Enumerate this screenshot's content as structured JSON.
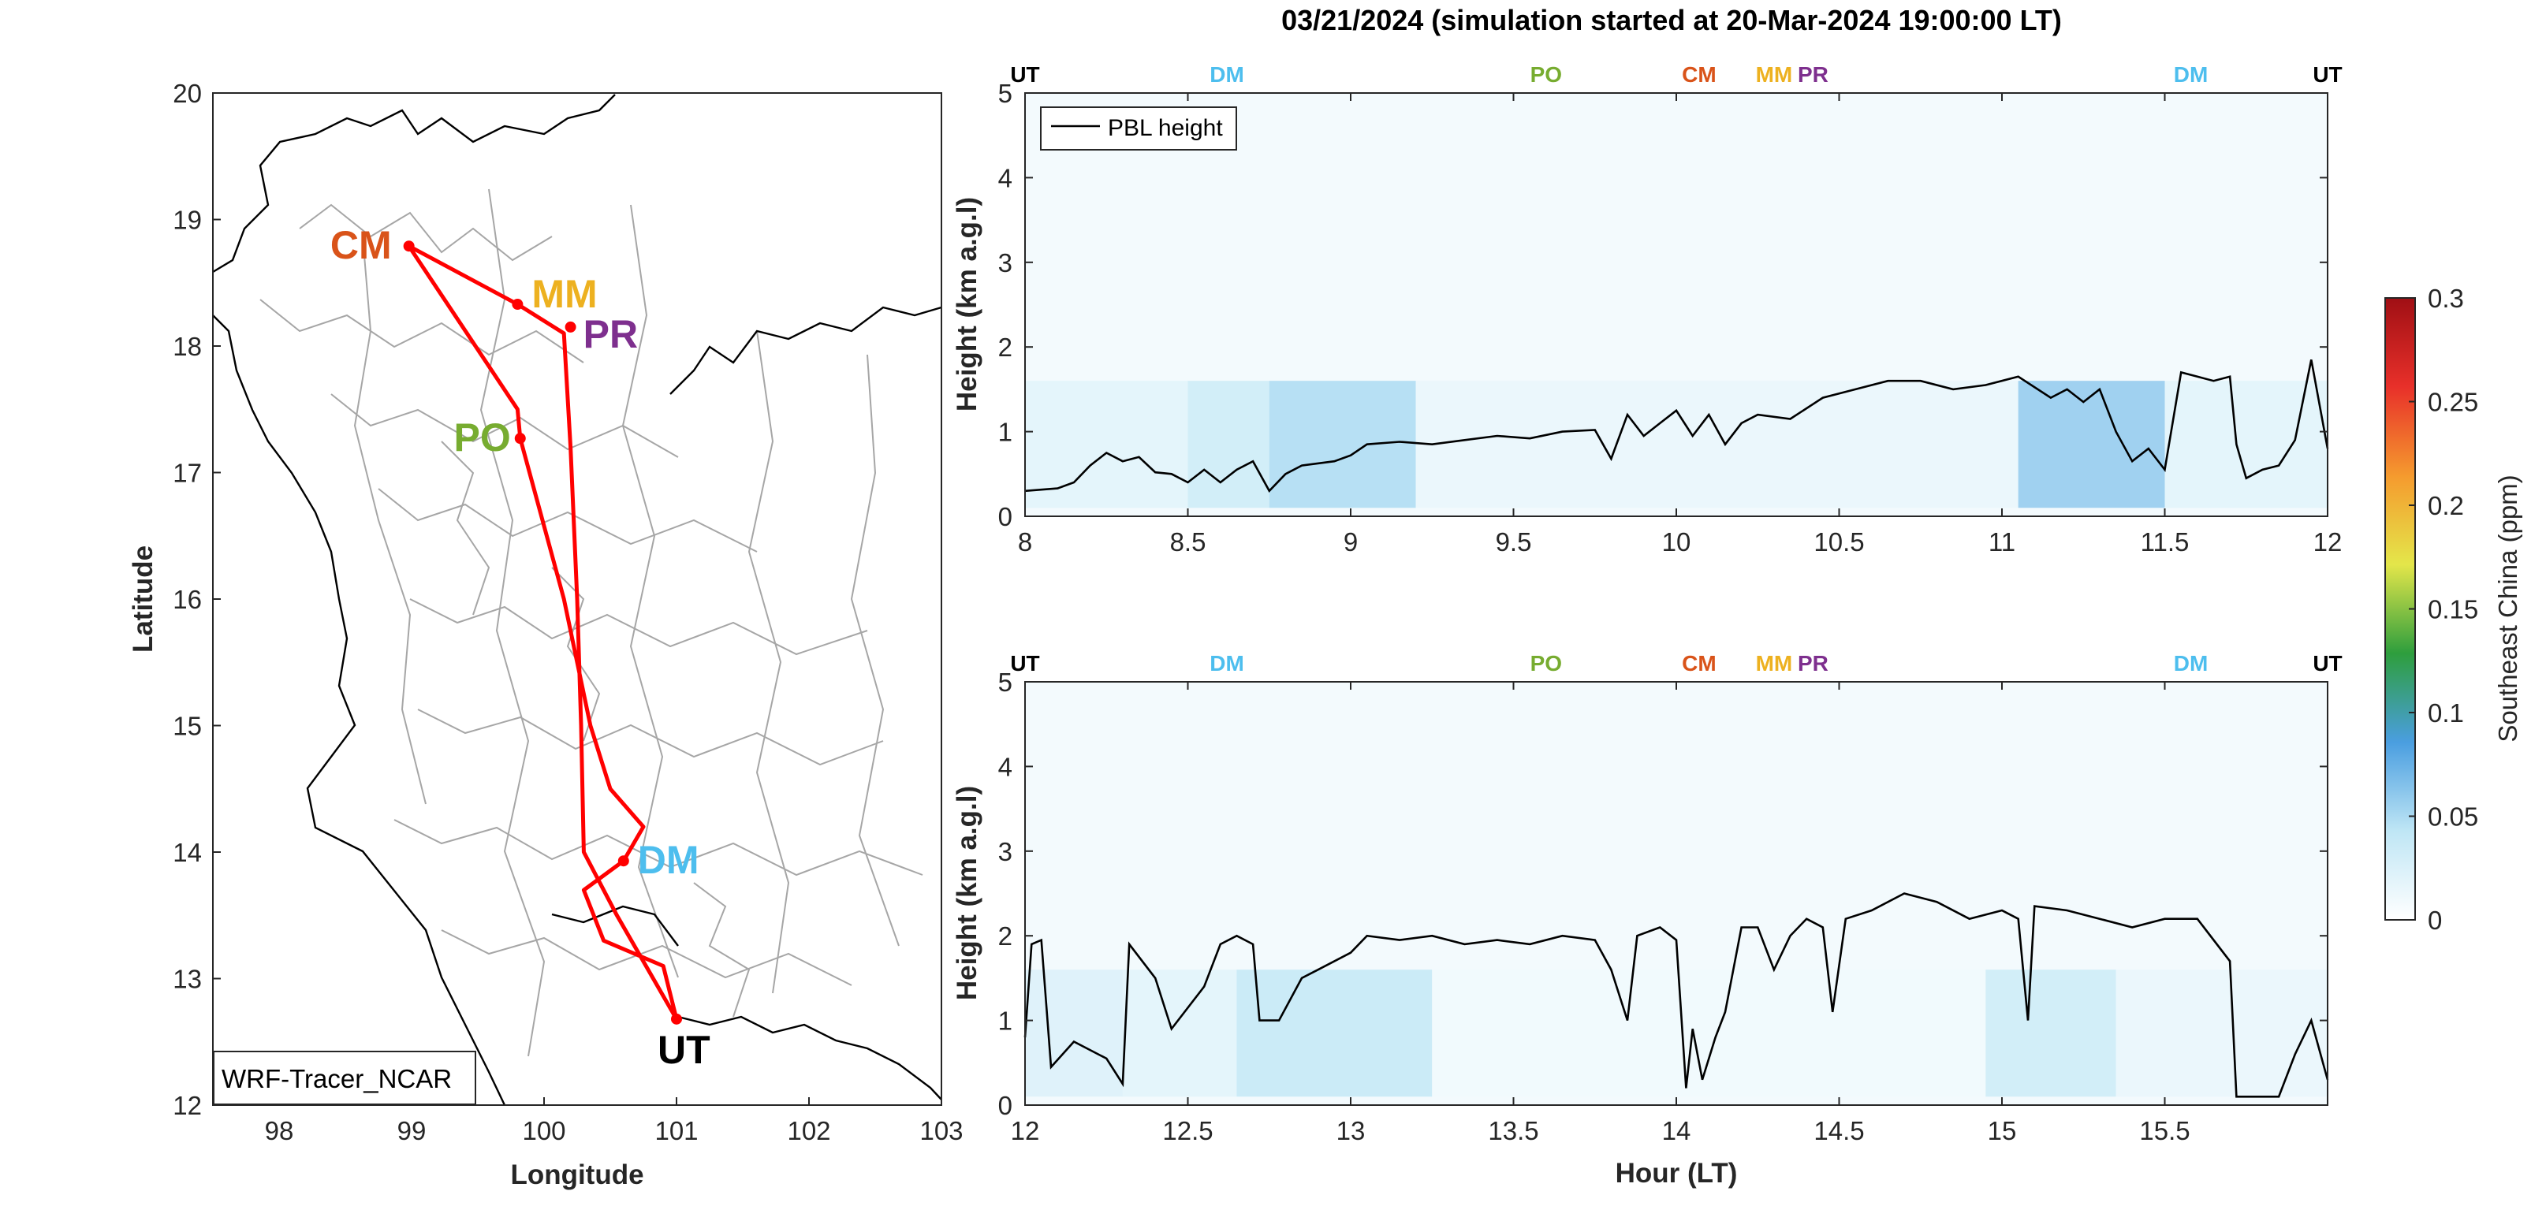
{
  "title": "03/21/2024 (simulation started at 20-Mar-2024 19:00:00 LT)",
  "colors": {
    "route": "#ff0000",
    "axis": "#262626",
    "border": "#a6a6a6",
    "coast": "#000000",
    "CM": "#d95319",
    "MM": "#edb120",
    "PR": "#7e2f8e",
    "PO": "#77ac30",
    "DM": "#4dbeee",
    "UT": "#000000"
  },
  "chart_data": [
    {
      "type": "map",
      "name": "map",
      "xlabel": "Longitude",
      "ylabel": "Latitude",
      "xlim": [
        97.5,
        103
      ],
      "ylim": [
        12,
        20
      ],
      "xticks": [
        "98",
        "99",
        "100",
        "101",
        "102",
        "103"
      ],
      "yticks": [
        "12",
        "13",
        "14",
        "15",
        "16",
        "17",
        "18",
        "19",
        "20"
      ],
      "legend": "WRF-Tracer_NCAR",
      "stations": [
        {
          "label": "CM",
          "lon": 98.98,
          "lat": 18.79
        },
        {
          "label": "MM",
          "lon": 99.8,
          "lat": 18.33
        },
        {
          "label": "PR",
          "lon": 100.2,
          "lat": 18.15
        },
        {
          "label": "PO",
          "lon": 99.82,
          "lat": 17.27
        },
        {
          "label": "DM",
          "lon": 100.6,
          "lat": 13.93
        },
        {
          "label": "UT",
          "lon": 101.0,
          "lat": 12.68
        }
      ],
      "route": [
        [
          101.0,
          12.68
        ],
        [
          100.55,
          13.5
        ],
        [
          100.3,
          14.0
        ],
        [
          100.28,
          15.0
        ],
        [
          100.25,
          16.0
        ],
        [
          100.2,
          17.2
        ],
        [
          100.15,
          18.1
        ],
        [
          99.8,
          18.33
        ],
        [
          98.98,
          18.79
        ],
        [
          99.8,
          17.5
        ],
        [
          99.82,
          17.27
        ],
        [
          100.15,
          16.0
        ],
        [
          100.35,
          15.0
        ],
        [
          100.5,
          14.5
        ],
        [
          100.75,
          14.2
        ],
        [
          100.6,
          13.93
        ],
        [
          100.3,
          13.7
        ],
        [
          100.45,
          13.3
        ],
        [
          100.9,
          13.1
        ],
        [
          101.0,
          12.68
        ]
      ]
    },
    {
      "type": "heatmap",
      "name": "upper",
      "xlim": [
        8,
        12
      ],
      "ylim": [
        0,
        5
      ],
      "xticks": [
        "8",
        "8.5",
        "9",
        "9.5",
        "10",
        "10.5",
        "11",
        "11.5",
        "12"
      ],
      "yticks": [
        "0",
        "1",
        "2",
        "3",
        "4",
        "5"
      ],
      "xlabel": "",
      "ylabel": "Height (km a.g.l)",
      "legend": "PBL height",
      "top_labels": [
        {
          "label": "UT",
          "x": 8.0
        },
        {
          "label": "DM",
          "x": 8.62
        },
        {
          "label": "PO",
          "x": 9.6
        },
        {
          "label": "CM",
          "x": 10.07
        },
        {
          "label": "MM",
          "x": 10.3
        },
        {
          "label": "PR",
          "x": 10.42
        },
        {
          "label": "DM",
          "x": 11.58
        },
        {
          "label": "UT",
          "x": 12.0
        }
      ],
      "pbl_height": [
        [
          8.0,
          0.3
        ],
        [
          8.1,
          0.33
        ],
        [
          8.15,
          0.4
        ],
        [
          8.2,
          0.6
        ],
        [
          8.25,
          0.75
        ],
        [
          8.3,
          0.65
        ],
        [
          8.35,
          0.7
        ],
        [
          8.4,
          0.52
        ],
        [
          8.45,
          0.5
        ],
        [
          8.5,
          0.4
        ],
        [
          8.55,
          0.55
        ],
        [
          8.6,
          0.4
        ],
        [
          8.65,
          0.55
        ],
        [
          8.7,
          0.65
        ],
        [
          8.75,
          0.3
        ],
        [
          8.8,
          0.5
        ],
        [
          8.85,
          0.6
        ],
        [
          8.95,
          0.65
        ],
        [
          9.0,
          0.72
        ],
        [
          9.05,
          0.85
        ],
        [
          9.15,
          0.88
        ],
        [
          9.25,
          0.85
        ],
        [
          9.35,
          0.9
        ],
        [
          9.45,
          0.95
        ],
        [
          9.55,
          0.92
        ],
        [
          9.65,
          1.0
        ],
        [
          9.75,
          1.02
        ],
        [
          9.8,
          0.68
        ],
        [
          9.85,
          1.2
        ],
        [
          9.9,
          0.95
        ],
        [
          9.95,
          1.1
        ],
        [
          10.0,
          1.25
        ],
        [
          10.05,
          0.95
        ],
        [
          10.1,
          1.2
        ],
        [
          10.15,
          0.85
        ],
        [
          10.2,
          1.1
        ],
        [
          10.25,
          1.2
        ],
        [
          10.35,
          1.15
        ],
        [
          10.45,
          1.4
        ],
        [
          10.55,
          1.5
        ],
        [
          10.65,
          1.6
        ],
        [
          10.75,
          1.6
        ],
        [
          10.85,
          1.5
        ],
        [
          10.95,
          1.55
        ],
        [
          11.05,
          1.65
        ],
        [
          11.15,
          1.4
        ],
        [
          11.2,
          1.5
        ],
        [
          11.25,
          1.35
        ],
        [
          11.3,
          1.5
        ],
        [
          11.35,
          1.0
        ],
        [
          11.4,
          0.65
        ],
        [
          11.45,
          0.8
        ],
        [
          11.5,
          0.55
        ],
        [
          11.55,
          1.7
        ],
        [
          11.6,
          1.65
        ],
        [
          11.65,
          1.6
        ],
        [
          11.7,
          1.65
        ],
        [
          11.72,
          0.85
        ],
        [
          11.75,
          0.45
        ],
        [
          11.8,
          0.55
        ],
        [
          11.85,
          0.6
        ],
        [
          11.9,
          0.9
        ],
        [
          11.95,
          1.85
        ],
        [
          12.0,
          0.8
        ]
      ],
      "concentration_bands": [
        [
          8.0,
          8.5,
          0.02
        ],
        [
          8.5,
          8.75,
          0.035
        ],
        [
          8.75,
          9.2,
          0.05
        ],
        [
          9.2,
          11.05,
          0.015
        ],
        [
          11.05,
          11.5,
          0.06
        ],
        [
          11.5,
          12.0,
          0.02
        ]
      ]
    },
    {
      "type": "heatmap",
      "name": "lower",
      "xlim": [
        12,
        16
      ],
      "ylim": [
        0,
        5
      ],
      "xticks": [
        "12",
        "12.5",
        "13",
        "13.5",
        "14",
        "14.5",
        "15",
        "15.5"
      ],
      "yticks": [
        "0",
        "1",
        "2",
        "3",
        "4",
        "5"
      ],
      "xlabel": "Hour (LT)",
      "ylabel": "Height (km a.g.l)",
      "top_labels": [
        {
          "label": "UT",
          "x": 12.0
        },
        {
          "label": "DM",
          "x": 12.62
        },
        {
          "label": "PO",
          "x": 13.6
        },
        {
          "label": "CM",
          "x": 14.07
        },
        {
          "label": "MM",
          "x": 14.3
        },
        {
          "label": "PR",
          "x": 14.42
        },
        {
          "label": "DM",
          "x": 15.58
        },
        {
          "label": "UT",
          "x": 16.0
        }
      ],
      "pbl_height": [
        [
          12.0,
          0.8
        ],
        [
          12.02,
          1.9
        ],
        [
          12.05,
          1.95
        ],
        [
          12.08,
          0.45
        ],
        [
          12.15,
          0.75
        ],
        [
          12.25,
          0.55
        ],
        [
          12.3,
          0.25
        ],
        [
          12.32,
          1.9
        ],
        [
          12.4,
          1.5
        ],
        [
          12.45,
          0.9
        ],
        [
          12.55,
          1.4
        ],
        [
          12.6,
          1.9
        ],
        [
          12.65,
          2.0
        ],
        [
          12.7,
          1.9
        ],
        [
          12.72,
          1.0
        ],
        [
          12.78,
          1.0
        ],
        [
          12.85,
          1.5
        ],
        [
          12.9,
          1.6
        ],
        [
          13.0,
          1.8
        ],
        [
          13.05,
          2.0
        ],
        [
          13.15,
          1.95
        ],
        [
          13.25,
          2.0
        ],
        [
          13.35,
          1.9
        ],
        [
          13.45,
          1.95
        ],
        [
          13.55,
          1.9
        ],
        [
          13.65,
          2.0
        ],
        [
          13.75,
          1.95
        ],
        [
          13.8,
          1.6
        ],
        [
          13.85,
          1.0
        ],
        [
          13.88,
          2.0
        ],
        [
          13.95,
          2.1
        ],
        [
          14.0,
          1.95
        ],
        [
          14.03,
          0.2
        ],
        [
          14.05,
          0.9
        ],
        [
          14.08,
          0.3
        ],
        [
          14.12,
          0.8
        ],
        [
          14.15,
          1.1
        ],
        [
          14.2,
          2.1
        ],
        [
          14.25,
          2.1
        ],
        [
          14.3,
          1.6
        ],
        [
          14.35,
          2.0
        ],
        [
          14.4,
          2.2
        ],
        [
          14.45,
          2.1
        ],
        [
          14.48,
          1.1
        ],
        [
          14.52,
          2.2
        ],
        [
          14.6,
          2.3
        ],
        [
          14.7,
          2.5
        ],
        [
          14.8,
          2.4
        ],
        [
          14.9,
          2.2
        ],
        [
          15.0,
          2.3
        ],
        [
          15.05,
          2.2
        ],
        [
          15.08,
          1.0
        ],
        [
          15.1,
          2.35
        ],
        [
          15.2,
          2.3
        ],
        [
          15.3,
          2.2
        ],
        [
          15.4,
          2.1
        ],
        [
          15.5,
          2.2
        ],
        [
          15.6,
          2.2
        ],
        [
          15.7,
          1.7
        ],
        [
          15.72,
          0.1
        ],
        [
          15.8,
          0.1
        ],
        [
          15.85,
          0.1
        ],
        [
          15.9,
          0.6
        ],
        [
          15.95,
          1.0
        ],
        [
          16.0,
          0.3
        ]
      ],
      "concentration_bands": [
        [
          12.0,
          12.3,
          0.025
        ],
        [
          12.3,
          12.65,
          0.02
        ],
        [
          12.65,
          13.25,
          0.04
        ],
        [
          13.25,
          14.95,
          0.01
        ],
        [
          14.95,
          15.35,
          0.035
        ],
        [
          15.35,
          16.0,
          0.015
        ]
      ]
    }
  ],
  "colorbar": {
    "label": "Southeast China (ppm)",
    "ticks": [
      "0",
      "0.05",
      "0.1",
      "0.15",
      "0.2",
      "0.25",
      "0.3"
    ],
    "range": [
      0,
      0.3
    ],
    "stops": [
      "#ffffff",
      "#bfe6f5",
      "#4a9ee0",
      "#2e9e3d",
      "#e4e64a",
      "#f59a2e",
      "#e8302a",
      "#a00f14"
    ]
  }
}
